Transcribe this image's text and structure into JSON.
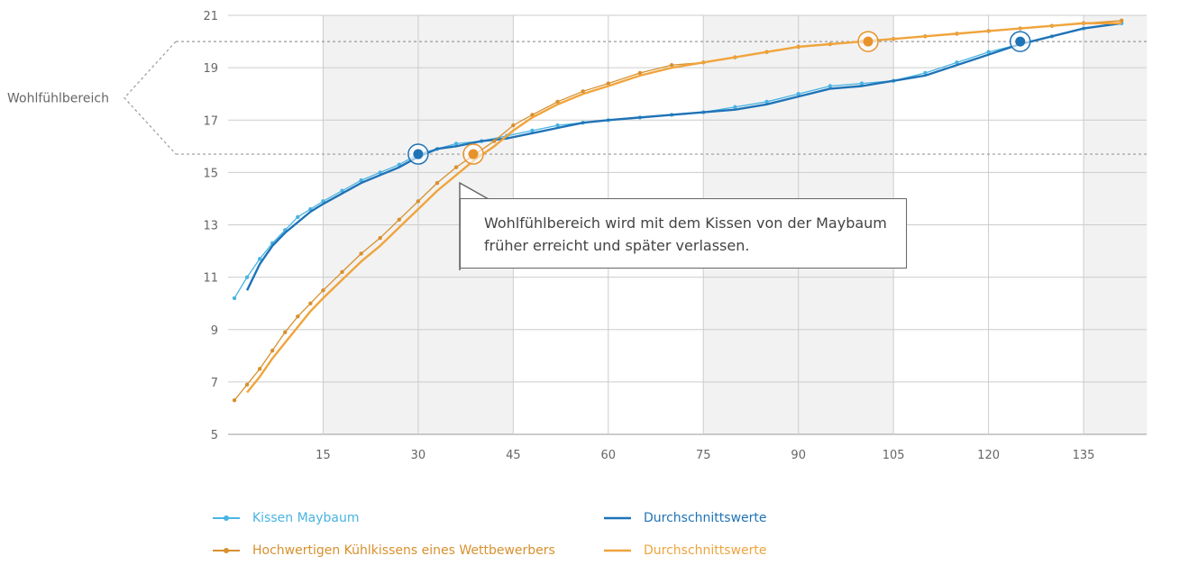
{
  "chart_data": {
    "type": "line",
    "title": "",
    "xlabel": "",
    "ylabel": "",
    "xlim": [
      0,
      145
    ],
    "ylim": [
      5,
      21
    ],
    "xticks": [
      15,
      30,
      45,
      60,
      75,
      90,
      105,
      120,
      135
    ],
    "yticks": [
      5,
      7,
      9,
      11,
      13,
      15,
      17,
      19,
      21
    ],
    "shaded_columns": [
      [
        15,
        45
      ],
      [
        75,
        105
      ],
      [
        135,
        145
      ]
    ],
    "comfort_zone": {
      "label": "Wohlfühlbereich",
      "ymin": 15.7,
      "ymax": 20
    },
    "annotation": {
      "line1": "Wohlfühlbereich wird mit dem Kissen von der Maybaum",
      "line2": "früher erreicht und später verlassen."
    },
    "series": [
      {
        "name": "Kissen Maybaum",
        "color": "#49b4e3",
        "markers": true,
        "x": [
          1,
          3,
          5,
          7,
          9,
          11,
          13,
          15,
          18,
          21,
          24,
          27,
          30,
          33,
          36,
          40,
          44,
          48,
          52,
          56,
          60,
          65,
          70,
          75,
          80,
          85,
          90,
          95,
          100,
          105,
          110,
          115,
          120,
          125,
          130,
          135,
          141
        ],
        "y": [
          10.2,
          11.0,
          11.7,
          12.3,
          12.8,
          13.3,
          13.6,
          13.9,
          14.3,
          14.7,
          15.0,
          15.3,
          15.7,
          15.9,
          16.1,
          16.2,
          16.4,
          16.6,
          16.8,
          16.9,
          17.0,
          17.1,
          17.2,
          17.3,
          17.5,
          17.7,
          18.0,
          18.3,
          18.4,
          18.5,
          18.8,
          19.2,
          19.6,
          19.9,
          20.2,
          20.5,
          20.7
        ]
      },
      {
        "name": "Durchschnittswerte",
        "color": "#1f73b7",
        "markers": false,
        "x": [
          3,
          5,
          7,
          9,
          11,
          13,
          15,
          18,
          21,
          24,
          27,
          30,
          33,
          36,
          40,
          44,
          48,
          52,
          56,
          60,
          65,
          70,
          75,
          80,
          85,
          90,
          95,
          100,
          105,
          110,
          115,
          120,
          125,
          130,
          135,
          141
        ],
        "y": [
          10.5,
          11.5,
          12.2,
          12.7,
          13.1,
          13.5,
          13.8,
          14.2,
          14.6,
          14.9,
          15.2,
          15.6,
          15.9,
          16.0,
          16.2,
          16.3,
          16.5,
          16.7,
          16.9,
          17.0,
          17.1,
          17.2,
          17.3,
          17.4,
          17.6,
          17.9,
          18.2,
          18.3,
          18.5,
          18.7,
          19.1,
          19.5,
          19.9,
          20.2,
          20.5,
          20.7
        ]
      },
      {
        "name": "Hochwertigen Kühlkissens eines Wettbewerbers",
        "color": "#d8902e",
        "markers": true,
        "x": [
          1,
          3,
          5,
          7,
          9,
          11,
          13,
          15,
          18,
          21,
          24,
          27,
          30,
          33,
          36,
          39,
          42,
          45,
          48,
          52,
          56,
          60,
          65,
          70,
          75,
          80,
          85,
          90,
          95,
          100,
          105,
          110,
          115,
          120,
          125,
          130,
          135,
          141
        ],
        "y": [
          6.3,
          6.9,
          7.5,
          8.2,
          8.9,
          9.5,
          10.0,
          10.5,
          11.2,
          11.9,
          12.5,
          13.2,
          13.9,
          14.6,
          15.2,
          15.7,
          16.2,
          16.8,
          17.2,
          17.7,
          18.1,
          18.4,
          18.8,
          19.1,
          19.2,
          19.4,
          19.6,
          19.8,
          19.9,
          20.0,
          20.1,
          20.2,
          20.3,
          20.4,
          20.5,
          20.6,
          20.7,
          20.8
        ]
      },
      {
        "name": "Durchschnittswerte",
        "color": "#f0a43c",
        "markers": false,
        "x": [
          3,
          5,
          7,
          9,
          11,
          13,
          15,
          18,
          21,
          24,
          27,
          30,
          33,
          36,
          39,
          42,
          45,
          48,
          52,
          56,
          60,
          65,
          70,
          75,
          80,
          85,
          90,
          95,
          100,
          105,
          110,
          115,
          120,
          125,
          130,
          135,
          141
        ],
        "y": [
          6.6,
          7.2,
          7.9,
          8.5,
          9.1,
          9.7,
          10.2,
          10.9,
          11.6,
          12.2,
          12.9,
          13.6,
          14.3,
          14.9,
          15.5,
          16.0,
          16.6,
          17.1,
          17.6,
          18.0,
          18.3,
          18.7,
          19.0,
          19.2,
          19.4,
          19.6,
          19.8,
          19.9,
          20.0,
          20.1,
          20.2,
          20.3,
          20.4,
          20.5,
          20.6,
          20.7,
          20.7
        ]
      }
    ],
    "highlight_points": [
      {
        "x": 30,
        "y": 15.7,
        "color": "#1f73b7"
      },
      {
        "x": 38.7,
        "y": 15.7,
        "color": "#e8922c"
      },
      {
        "x": 101,
        "y": 20,
        "color": "#e8922c"
      },
      {
        "x": 125,
        "y": 20,
        "color": "#1f73b7"
      }
    ]
  }
}
